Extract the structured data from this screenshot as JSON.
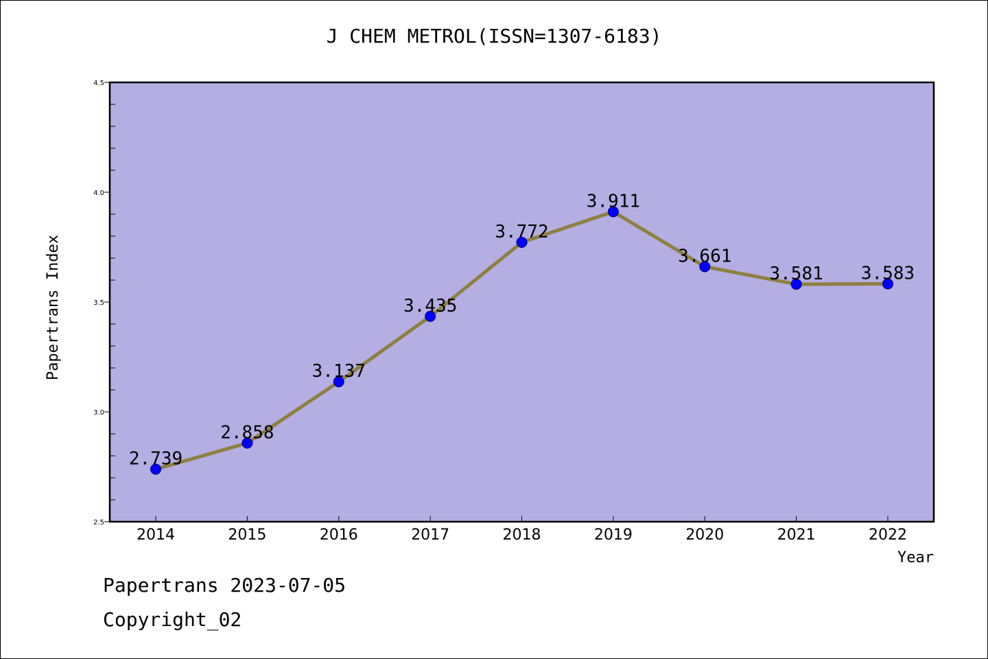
{
  "chart_data": {
    "type": "line",
    "title": "J CHEM METROL(ISSN=1307-6183)",
    "xlabel": "Year",
    "ylabel": "Papertrans Index",
    "categories": [
      "2014",
      "2015",
      "2016",
      "2017",
      "2018",
      "2019",
      "2020",
      "2021",
      "2022"
    ],
    "values": [
      2.739,
      2.858,
      3.137,
      3.435,
      3.772,
      3.911,
      3.661,
      3.581,
      3.583
    ],
    "data_labels": [
      "2.739",
      "2.858",
      "3.137",
      "3.435",
      "3.772",
      "3.911",
      "3.661",
      "3.581",
      "3.583"
    ],
    "ylim": [
      2.5,
      4.5
    ],
    "yticks": [
      "2.5",
      "3.0",
      "3.5",
      "4.0",
      "4.5"
    ],
    "grid": false,
    "colors": {
      "plot_background": "#b4aee2",
      "line": "#8f7f3f",
      "marker": "#0000ff"
    }
  },
  "footer": {
    "line1": "Papertrans 2023-07-05",
    "line2": "Copyright_02"
  }
}
